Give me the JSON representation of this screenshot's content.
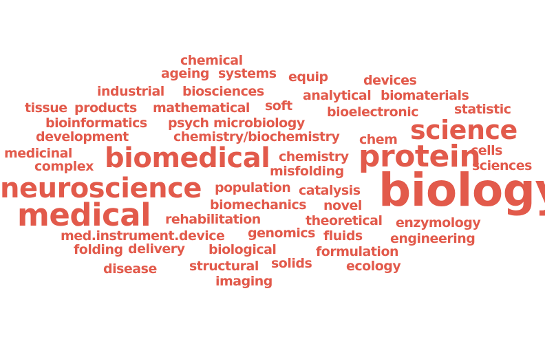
{
  "cloud": {
    "color": "#e25a4b",
    "words": {
      "chemical": "chemical",
      "ageing": "ageing",
      "systems": "systems",
      "equip": "equip",
      "devices": "devices",
      "industrial": "industrial",
      "biosciences": "biosciences",
      "analytical": "analytical",
      "biomaterials": "biomaterials",
      "tissue": "tissue",
      "products": "products",
      "mathematical": "mathematical",
      "soft": "soft",
      "bioelectronic": "bioelectronic",
      "statistic": "statistic",
      "bioinformatics": "bioinformatics",
      "psych": "psych",
      "microbiology": "microbiology",
      "science": "science",
      "development": "development",
      "chemistry_biochemistry": "chemistry/biochemistry",
      "chem": "chem",
      "medicinal": "medicinal",
      "biomedical": "biomedical",
      "chemistry": "chemistry",
      "protein": "protein",
      "cells": "cells",
      "complex": "complex",
      "misfolding": "misfolding",
      "sciences": "sciences",
      "neuroscience": "neuroscience",
      "population": "population",
      "catalysis": "catalysis",
      "biology": "biology",
      "biomechanics": "biomechanics",
      "novel": "novel",
      "medical": "medical",
      "rehabilitation": "rehabilitation",
      "theoretical": "theoretical",
      "enzymology": "enzymology",
      "genomics": "genomics",
      "med_instrument_device": "med.instrument.device",
      "fluids": "fluids",
      "engineering": "engineering",
      "folding": "folding",
      "delivery": "delivery",
      "biological": "biological",
      "formulation": "formulation",
      "disease": "disease",
      "structural": "structural",
      "solids": "solids",
      "ecology": "ecology",
      "imaging": "imaging"
    }
  }
}
